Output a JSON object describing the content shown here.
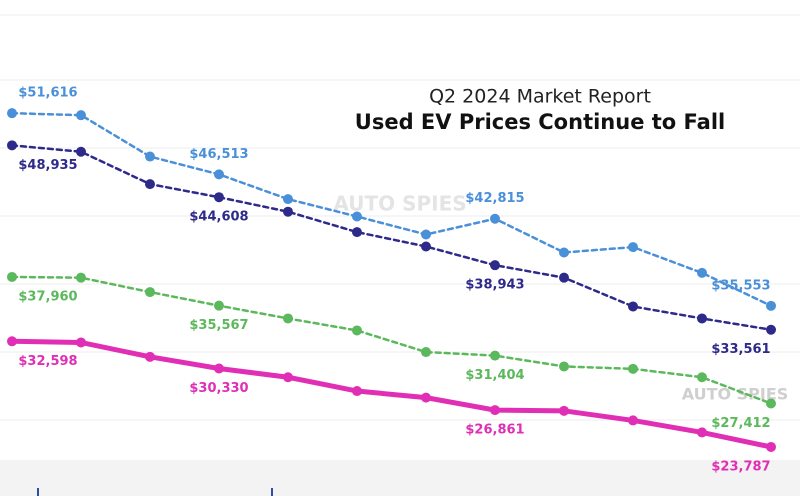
{
  "chart_data": {
    "type": "line",
    "subtitle": "Q2 2024 Market Report",
    "title": "Used EV Prices Continue to Fall",
    "watermark": "AUTO SPIES",
    "categories": [
      null,
      null,
      null,
      null,
      null,
      null,
      null,
      null,
      null,
      null,
      null,
      null
    ],
    "ylim": [
      22700,
      59800
    ],
    "series": [
      {
        "color": "#4a90d9",
        "dashed": true,
        "values": [
          51616,
          51450,
          48000,
          46513,
          44450,
          43000,
          41500,
          42815,
          40000,
          40450,
          38300,
          35553
        ],
        "value_labels": [
          "$51,616",
          null,
          null,
          "$46,513",
          null,
          null,
          null,
          "$42,815",
          null,
          null,
          null,
          "$35,553"
        ]
      },
      {
        "color": "#2e2a8a",
        "dashed": true,
        "values": [
          48935,
          48400,
          45700,
          44608,
          43400,
          41700,
          40500,
          38943,
          37900,
          35500,
          34500,
          33561
        ],
        "value_labels": [
          "$48,935",
          null,
          null,
          "$44,608",
          null,
          null,
          null,
          "$38,943",
          null,
          null,
          null,
          "$33,561"
        ]
      },
      {
        "color": "#5cb85c",
        "dashed": true,
        "values": [
          37960,
          37900,
          36700,
          35567,
          34500,
          33500,
          31700,
          31404,
          30500,
          30300,
          29600,
          27412
        ],
        "value_labels": [
          "$37,960",
          null,
          null,
          "$35,567",
          null,
          null,
          null,
          "$31,404",
          null,
          null,
          null,
          "$27,412"
        ]
      },
      {
        "color": "#e02fb5",
        "dashed": false,
        "values": [
          32598,
          32500,
          31300,
          30330,
          29600,
          28450,
          27900,
          26861,
          26800,
          26000,
          25000,
          23787
        ],
        "value_labels": [
          "$32,598",
          null,
          null,
          "$30,330",
          null,
          null,
          null,
          "$26,861",
          null,
          null,
          null,
          "$23,787"
        ]
      }
    ]
  }
}
